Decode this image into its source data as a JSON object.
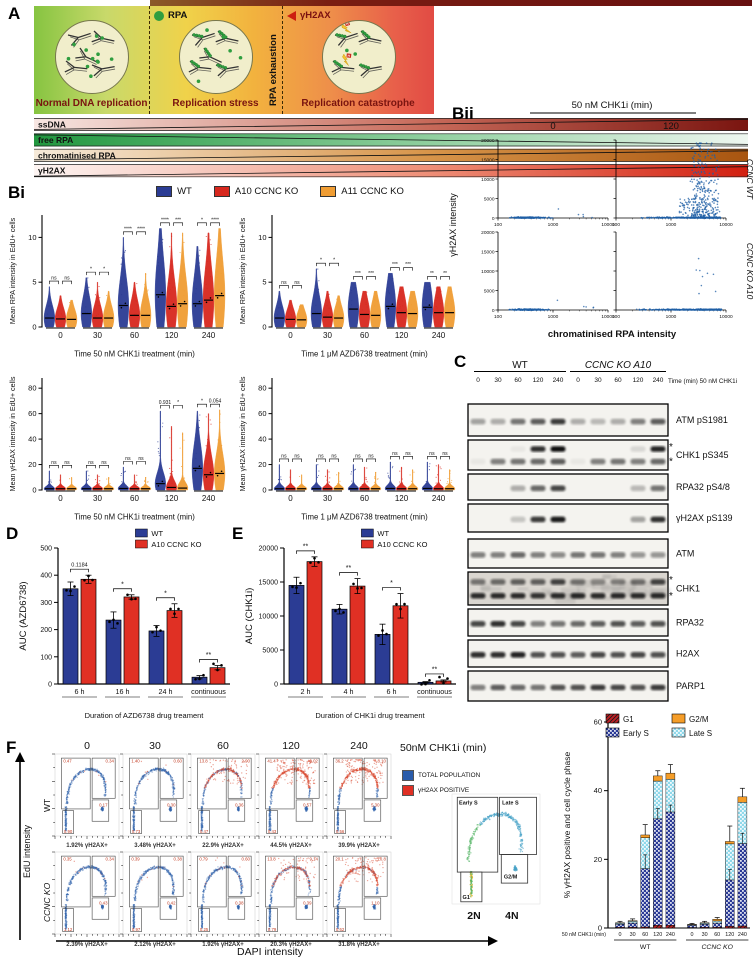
{
  "figure": {
    "panel_labels": {
      "A": "A",
      "Bi": "Bi",
      "Bii": "Bii",
      "C": "C",
      "D": "D",
      "E": "E",
      "F": "F"
    }
  },
  "panelA": {
    "legend_rpa": "RPA",
    "legend_h2ax": "γH2AX",
    "rpa_exhaustion": "RPA exhaustion",
    "sections": [
      "Normal DNA replication",
      "Replication stress",
      "Replication catastrophe"
    ],
    "bands": [
      "ssDNA",
      "free RPA",
      "chromatinised RPA",
      "γH2AX"
    ],
    "band_colors": {
      "ssDNA": [
        "#f7e6e2",
        "#c86a5a",
        "#7a1510"
      ],
      "free_rpa": [
        "#21973f",
        "#8fcf9e",
        "#eef7f0"
      ],
      "chromatinised_rpa": [
        "#f6ead9",
        "#d8954a",
        "#a85510"
      ],
      "h2ax": [
        "#fdf5f3",
        "#ee8f78",
        "#d21f10"
      ]
    },
    "rpa_dot_color": "#2f9e3f",
    "h2ax_tri_color": "#cc1f10"
  },
  "panelBi": {
    "legend": [
      {
        "label": "WT",
        "color": "#2b3c94"
      },
      {
        "label": "A10 CCNC KO",
        "color": "#d7281e"
      },
      {
        "label": "A11 CCNC KO",
        "color": "#f09d33"
      }
    ]
  },
  "panelC": {
    "groups": [
      "WT",
      "CCNC KO A10"
    ],
    "time_label": "Time (min) 50 nM CHK1i",
    "times": [
      "0",
      "30",
      "60",
      "120",
      "240",
      "0",
      "30",
      "60",
      "120",
      "240"
    ]
  },
  "panelF": {
    "header_note": "50nM CHK1i (min)",
    "col_headers": [
      "0",
      "30",
      "60",
      "120",
      "240"
    ],
    "row_labels": [
      "WT",
      "CCNC KO"
    ],
    "legend": [
      {
        "label": "TOTAL POPULATION",
        "color": "#2a5caa"
      },
      {
        "label": "γH2AX POSITIVE",
        "color": "#e03024"
      }
    ],
    "ylabel": "EdU intensity",
    "xlabel": "DAPI intensity",
    "inset": {
      "gates": [
        "Early S",
        "Late S",
        "G1",
        "G2/M"
      ],
      "xticks": [
        "2N",
        "4N"
      ]
    },
    "percents": [
      [
        "1.92% γH2AX+",
        "3.48% γH2AX+",
        "22.9% γH2AX+",
        "44.5% γH2AX+",
        "39.9% γH2AX+"
      ],
      [
        "2.39% γH2AX+",
        "2.12% γH2AX+",
        "1.92% γH2AX+",
        "20.3% γH2AX+",
        "31.8% γH2AX+"
      ]
    ],
    "gate_values": [
      [
        [
          "0.47",
          "0.34",
          "0.17",
          "0.90"
        ],
        [
          "1.40",
          "0.60",
          "0.30",
          "0.73"
        ],
        [
          "13.8",
          "2.90",
          "0.36",
          "0.47"
        ],
        [
          "41.4",
          "9.02",
          "0.57",
          "0.43"
        ],
        [
          "36.2",
          "8.10",
          "5.30",
          "0.56"
        ]
      ],
      [
        [
          "0.35",
          "0.34",
          "0.43",
          "1.12"
        ],
        [
          "0.39",
          "0.38",
          "0.42",
          "0.97"
        ],
        [
          "0.79",
          "0.60",
          "0.38",
          "0.25"
        ],
        [
          "13.8",
          "9.14",
          "0.39",
          "0.79"
        ],
        [
          "20.1",
          "10.8",
          "1.10",
          "0.62"
        ]
      ]
    ],
    "redness": [
      [
        0.02,
        0.05,
        0.45,
        0.85,
        0.78
      ],
      [
        0.02,
        0.03,
        0.05,
        0.38,
        0.6
      ]
    ]
  },
  "chart_data": [
    {
      "id": "violin_rpa_chk1i",
      "type": "violin",
      "ylabel": "Mean RPA intensity in EdU+ cells",
      "xlabel": "Time 50 nM CHK1i treatment (min)",
      "categories": [
        "0",
        "30",
        "60",
        "120",
        "240"
      ],
      "yticks": [
        0,
        5,
        10
      ],
      "ylim": [
        0,
        12.5
      ],
      "series": [
        "WT",
        "A10 CCNC KO",
        "A11 CCNC KO"
      ],
      "medians": [
        [
          1.0,
          0.9,
          0.85
        ],
        [
          1.5,
          1.0,
          1.0
        ],
        [
          2.4,
          1.3,
          1.3
        ],
        [
          3.6,
          2.3,
          2.6
        ],
        [
          2.6,
          3.0,
          3.5
        ]
      ],
      "tails": [
        [
          4.5,
          3.5,
          3.0
        ],
        [
          5.5,
          5.0,
          4.0
        ],
        [
          10.0,
          5.0,
          6.0
        ],
        [
          11.0,
          10.5,
          10.5
        ],
        [
          9.0,
          10.5,
          11.0
        ]
      ],
      "sig": [
        [
          "ns",
          "ns"
        ],
        [
          "*",
          "*"
        ],
        [
          "****",
          "****"
        ],
        [
          "****",
          "***"
        ],
        [
          "*",
          "****"
        ]
      ]
    },
    {
      "id": "violin_rpa_azd",
      "type": "violin",
      "ylabel": "Mean RPA intensity in EdU+ cells",
      "xlabel": "Time 1 μM AZD6738 treatment (min)",
      "categories": [
        "0",
        "30",
        "60",
        "120",
        "240"
      ],
      "yticks": [
        0,
        5,
        10
      ],
      "ylim": [
        0,
        12.5
      ],
      "series": [
        "WT",
        "A10 CCNC KO",
        "A11 CCNC KO"
      ],
      "medians": [
        [
          1.0,
          0.85,
          0.8
        ],
        [
          1.5,
          1.1,
          1.0
        ],
        [
          2.0,
          1.4,
          1.3
        ],
        [
          2.3,
          1.6,
          1.5
        ],
        [
          2.2,
          1.6,
          1.6
        ]
      ],
      "tails": [
        [
          4.0,
          3.0,
          2.5
        ],
        [
          6.5,
          4.0,
          3.5
        ],
        [
          5.0,
          4.0,
          4.0
        ],
        [
          6.0,
          4.5,
          4.0
        ],
        [
          5.0,
          4.5,
          4.5
        ]
      ],
      "sig": [
        [
          "ns",
          "ns"
        ],
        [
          "*",
          "*"
        ],
        [
          "***",
          "***"
        ],
        [
          "***",
          "***"
        ],
        [
          "**",
          "**"
        ]
      ]
    },
    {
      "id": "violin_h2ax_chk1i",
      "type": "violin",
      "ylabel": "Mean γH2AX intensity in EdU+ cells",
      "xlabel": "Time 50 nM CHK1i treatment (min)",
      "categories": [
        "0",
        "30",
        "60",
        "120",
        "240"
      ],
      "yticks": [
        0,
        20,
        40,
        60,
        80
      ],
      "ylim": [
        0,
        88
      ],
      "series": [
        "WT",
        "A10 CCNC KO",
        "A11 CCNC KO"
      ],
      "medians": [
        [
          1.0,
          1.0,
          1.0
        ],
        [
          1.0,
          1.0,
          1.0
        ],
        [
          1.2,
          1.0,
          1.0
        ],
        [
          5.0,
          2.0,
          1.5
        ],
        [
          17.0,
          12.0,
          13.0
        ]
      ],
      "tails": [
        [
          15,
          12,
          10
        ],
        [
          15,
          12,
          10
        ],
        [
          18,
          12,
          10
        ],
        [
          62,
          50,
          45
        ],
        [
          62,
          60,
          63
        ]
      ],
      "sig": [
        [
          "ns",
          "ns"
        ],
        [
          "ns",
          "ns"
        ],
        [
          "ns",
          "ns"
        ],
        [
          "0.931",
          "*"
        ],
        [
          "*",
          "0.054"
        ]
      ]
    },
    {
      "id": "violin_h2ax_azd",
      "type": "violin",
      "ylabel": "Mean γH2AX intensity in EdU+ cells",
      "xlabel": "Time 1 μM AZD6738 treatment (min)",
      "categories": [
        "0",
        "30",
        "60",
        "120",
        "240"
      ],
      "yticks": [
        0,
        20,
        40,
        60,
        80
      ],
      "ylim": [
        0,
        88
      ],
      "series": [
        "WT",
        "A10 CCNC KO",
        "A11 CCNC KO"
      ],
      "medians": [
        [
          1.0,
          1.0,
          1.0
        ],
        [
          1.0,
          1.0,
          1.0
        ],
        [
          1.0,
          1.0,
          1.0
        ],
        [
          1.2,
          1.0,
          1.0
        ],
        [
          1.2,
          1.0,
          1.0
        ]
      ],
      "tails": [
        [
          20,
          16,
          12
        ],
        [
          20,
          16,
          14
        ],
        [
          20,
          18,
          14
        ],
        [
          22,
          18,
          16
        ],
        [
          22,
          20,
          16
        ]
      ],
      "sig": [
        [
          "ns",
          "ns"
        ],
        [
          "ns",
          "ns"
        ],
        [
          "ns",
          "ns"
        ],
        [
          "ns",
          "ns"
        ],
        [
          "ns",
          "ns"
        ]
      ]
    },
    {
      "id": "bii_scatter",
      "type": "scatter",
      "title": "50 nM CHK1i (min)",
      "cols": [
        "0",
        "120"
      ],
      "rows": [
        "CCNC WT",
        "CCNC KO A10"
      ],
      "ylabel": "γH2AX intensity",
      "xlabel": "chromatinised RPA intensity",
      "yticks": [
        0,
        5000,
        10000,
        15000,
        20000
      ],
      "xticks": [
        100,
        1000,
        10000
      ],
      "ylim": [
        0,
        20000
      ],
      "point_color": "#1f5fa6",
      "subplot_kinds": [
        [
          "base",
          "plume"
        ],
        [
          "base",
          "band_out"
        ]
      ]
    },
    {
      "id": "bar_azd",
      "type": "bar",
      "ylabel": "AUC (AZD6738)",
      "xlabel": "Duration of AZD6738 drug treament",
      "categories": [
        "6 h",
        "16 h",
        "24 h",
        "continuous"
      ],
      "series": [
        {
          "name": "WT",
          "color": "#2b3c94",
          "values": [
            350,
            235,
            195,
            25
          ],
          "errors": [
            25,
            30,
            20,
            6
          ]
        },
        {
          "name": "A10 CCNC KO",
          "color": "#e03024",
          "values": [
            385,
            320,
            270,
            60
          ],
          "errors": [
            15,
            8,
            25,
            8
          ]
        }
      ],
      "sig": [
        "0.1184",
        "*",
        "*",
        "**"
      ],
      "yticks": [
        0,
        100,
        200,
        300,
        400,
        500
      ],
      "ylim": [
        0,
        500
      ]
    },
    {
      "id": "bar_chk1i",
      "type": "bar",
      "ylabel": "AUC (CHK1i)",
      "xlabel": "Duration of CHK1i drug treament",
      "categories": [
        "2 h",
        "4 h",
        "6 h",
        "continuous"
      ],
      "series": [
        {
          "name": "WT",
          "color": "#2b3c94",
          "values": [
            14500,
            11000,
            7300,
            250
          ],
          "errors": [
            1200,
            700,
            1500,
            100
          ]
        },
        {
          "name": "A10 CCNC KO",
          "color": "#e03024",
          "values": [
            18000,
            14400,
            11500,
            450
          ],
          "errors": [
            700,
            1100,
            1800,
            150
          ]
        }
      ],
      "sig": [
        "**",
        "**",
        "*",
        "**"
      ],
      "yticks": [
        0,
        5000,
        10000,
        15000,
        20000
      ],
      "ylim": [
        0,
        20000
      ]
    },
    {
      "id": "stacked",
      "type": "stacked-bar",
      "ylabel": "% γH2AX positive and cell cycle phase",
      "xlabel": "50 nM CHK1i (min)",
      "yticks": [
        0,
        20,
        40,
        60
      ],
      "ylim": [
        0,
        60
      ],
      "legend": [
        "G1",
        "G2/M",
        "Early S",
        "Late S"
      ],
      "segments": [
        "G1",
        "Early S",
        "Late S",
        "G2/M"
      ],
      "segment_colors": {
        "G1": "#c01f24",
        "Early S": "#2a3a96",
        "Late S": "#8fd8ea",
        "G2/M": "#f59d28"
      },
      "groups": [
        {
          "name": "WT",
          "ticks": [
            "0",
            "30",
            "60",
            "120",
            "240"
          ],
          "values": [
            [
              0.2,
              0.9,
              0.3,
              0.15
            ],
            [
              0.25,
              1.2,
              0.5,
              0.2
            ],
            [
              0.3,
              17,
              9,
              0.8
            ],
            [
              0.8,
              31,
              11,
              1.5
            ],
            [
              0.8,
              33,
              9.5,
              1.8
            ]
          ],
          "err_total": [
            0.4,
            0.5,
            3,
            1.5,
            2.5
          ],
          "err_mid": [
            0,
            0,
            4,
            3,
            2
          ]
        },
        {
          "name": "CCNC KO",
          "ticks": [
            "0",
            "30",
            "60",
            "120",
            "240"
          ],
          "values": [
            [
              0.15,
              0.6,
              0.2,
              0.1
            ],
            [
              0.2,
              0.9,
              0.3,
              0.15
            ],
            [
              0.25,
              1.2,
              0.6,
              0.5
            ],
            [
              0.5,
              13.5,
              10.5,
              0.7
            ],
            [
              0.6,
              24,
              12,
              1.6
            ]
          ],
          "err_total": [
            0.3,
            0.4,
            0.5,
            4.5,
            2.5
          ],
          "err_mid": [
            0,
            0,
            0,
            3,
            3
          ]
        }
      ]
    },
    {
      "id": "westerns",
      "type": "table",
      "group_labels": [
        "WT",
        "CCNC KO A10"
      ],
      "time_label": "Time (min) 50 nM CHK1i",
      "times": [
        "0",
        "30",
        "60",
        "120",
        "240",
        "0",
        "30",
        "60",
        "120",
        "240"
      ],
      "blots": [
        {
          "label": "ATM pS1981",
          "rows": 1,
          "intensity": [
            [
              0.35,
              0.3,
              0.55,
              0.65,
              0.8,
              0.3,
              0.25,
              0.3,
              0.5,
              0.65
            ]
          ]
        },
        {
          "label": "CHK1 pS345",
          "rows": 2,
          "asterisk": true,
          "intensity": [
            [
              0,
              0,
              0.05,
              0.85,
              1,
              0,
              0,
              0,
              0.12,
              0.9
            ],
            [
              0.05,
              0.5,
              0.55,
              0.6,
              0.65,
              0.05,
              0.5,
              0.55,
              0.5,
              0.6
            ]
          ]
        },
        {
          "label": "RPA32 pS4/8",
          "rows": 1,
          "intensity": [
            [
              0,
              0,
              0.3,
              0.6,
              0.75,
              0,
              0,
              0,
              0.25,
              0.55
            ]
          ]
        },
        {
          "label": "γH2AX pS139",
          "rows": 1,
          "intensity": [
            [
              0,
              0,
              0.2,
              0.8,
              0.95,
              0,
              0,
              0,
              0.35,
              0.85
            ]
          ]
        },
        {
          "label": "ATM",
          "rows": 1,
          "intensity": [
            [
              0.5,
              0.5,
              0.6,
              0.5,
              0.45,
              0.55,
              0.55,
              0.5,
              0.4,
              0.4
            ]
          ]
        },
        {
          "label": "CHK1",
          "rows": 2,
          "asterisk": true,
          "noisy": true,
          "intensity": [
            [
              0.5,
              0.55,
              0.6,
              0.6,
              0.75,
              0.45,
              0.4,
              0.45,
              0.5,
              0.75
            ],
            [
              0.85,
              0.85,
              0.85,
              0.8,
              0.85,
              0.85,
              0.85,
              0.85,
              0.85,
              0.85
            ]
          ]
        },
        {
          "label": "RPA32",
          "rows": 1,
          "intensity": [
            [
              0.75,
              0.85,
              0.75,
              0.5,
              0.55,
              0.6,
              0.65,
              0.7,
              0.65,
              0.7
            ]
          ]
        },
        {
          "label": "H2AX",
          "rows": 1,
          "intensity": [
            [
              0.85,
              0.85,
              0.9,
              0.7,
              0.7,
              0.65,
              0.75,
              0.7,
              0.75,
              0.7
            ]
          ]
        },
        {
          "label": "PARP1",
          "rows": 1,
          "intensity": [
            [
              0.5,
              0.65,
              0.6,
              0.55,
              0.7,
              0.7,
              0.8,
              0.75,
              0.7,
              0.8
            ]
          ]
        }
      ]
    }
  ]
}
